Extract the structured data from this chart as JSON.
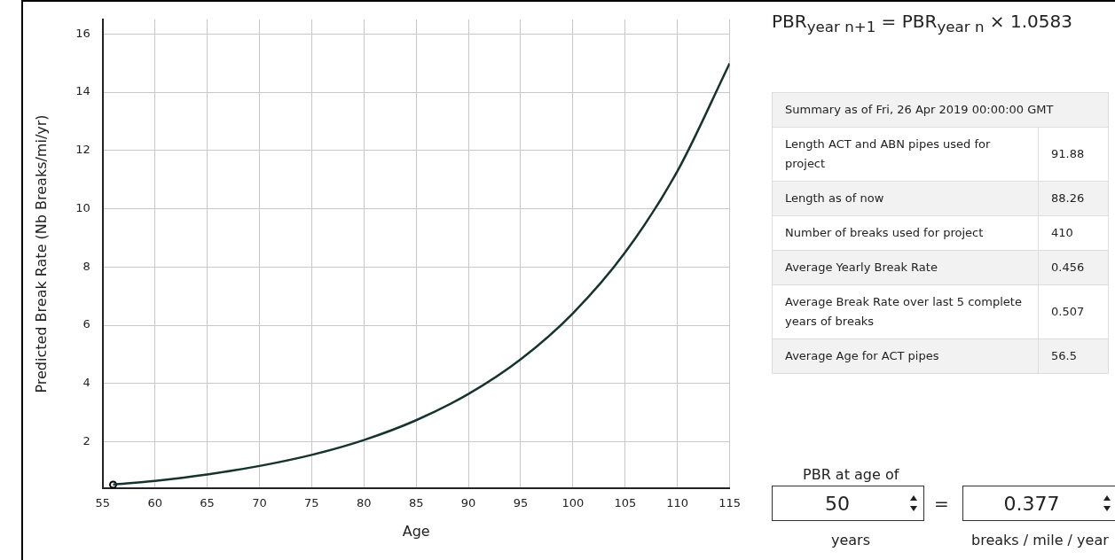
{
  "chart_data": [
    {
      "type": "line",
      "xlabel": "Age",
      "ylabel": "Predicted Break Rate (Nb Breaks/mi/yr)",
      "xlim": [
        55,
        115
      ],
      "xticks": [
        55,
        60,
        65,
        70,
        75,
        80,
        85,
        90,
        95,
        100,
        105,
        110,
        115
      ],
      "ylim": [
        0.4,
        16.5
      ],
      "yticks": [
        2,
        4,
        6,
        8,
        10,
        12,
        14,
        16
      ],
      "grid": true,
      "legend": false,
      "series": [
        {
          "type": "line",
          "color": "#16332f",
          "marker": "none",
          "x": [
            56,
            60,
            65,
            70,
            75,
            80,
            85,
            90,
            95,
            100,
            105,
            110,
            115
          ],
          "values": [
            0.53,
            0.66,
            0.88,
            1.17,
            1.55,
            2.06,
            2.74,
            3.64,
            4.83,
            6.41,
            8.5,
            11.29,
            14.99
          ]
        },
        {
          "type": "scatter",
          "color": "#000000",
          "marker": "circle",
          "x": [
            56
          ],
          "values": [
            0.53
          ]
        }
      ]
    },
    {
      "type": "other",
      "annotations": [
        "PBR$_{year n+1}$ = PBR$_{year n}$ × 1.0583",
        "Summary as of Fri, 26 Apr 2019 00:00:00 GMT",
        "Length ACT and ABN pipes used for project",
        "91.88",
        "Length as of now",
        "88.26",
        "Number of breaks used for project",
        "410",
        "Average Yearly Break Rate",
        "0.456",
        "Average Break Rate over last 5 complete years of breaks",
        "0.507",
        "Average Age for ACT pipes",
        "56.5",
        "PBR at age of",
        "50",
        "=",
        "0.377",
        "years",
        "breaks / mile / year"
      ]
    }
  ]
}
